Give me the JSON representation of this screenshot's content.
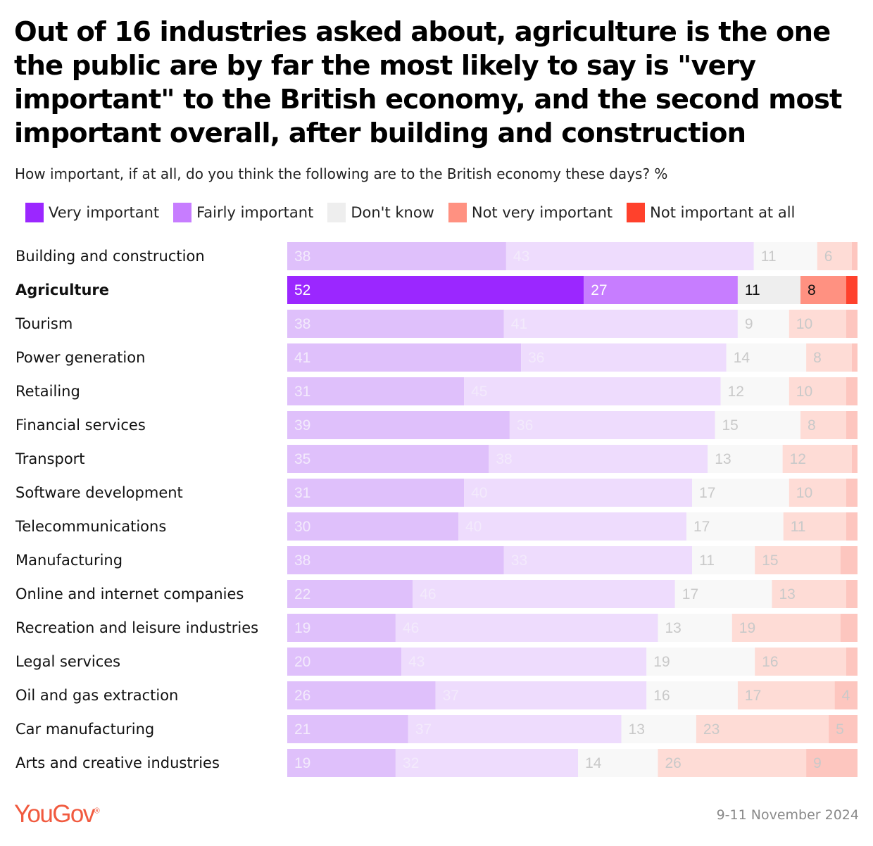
{
  "header": {
    "title": "Out of 16 industries asked about, agriculture is the one the public are by far the most likely to say is \"very important\" to the British economy, and the second most important overall, after building and construction",
    "subtitle": "How important, if at all, do you think the following are to the British economy these days? %"
  },
  "legend": [
    {
      "label": "Very important",
      "color": "#9b27ff"
    },
    {
      "label": "Fairly important",
      "color": "#c77dff"
    },
    {
      "label": "Don't know",
      "color": "#eeeeee"
    },
    {
      "label": "Not very important",
      "color": "#ff9181"
    },
    {
      "label": "Not important at all",
      "color": "#ff412c"
    }
  ],
  "chart_data": {
    "type": "bar",
    "orientation": "horizontal",
    "stacked": true,
    "highlight": "Agriculture",
    "categories": [
      "Building and construction",
      "Agriculture",
      "Tourism",
      "Power generation",
      "Retailing",
      "Financial services",
      "Transport",
      "Software development",
      "Telecommunications",
      "Manufacturing",
      "Online and internet companies",
      "Recreation and leisure industries",
      "Legal services",
      "Oil and gas extraction",
      "Car manufacturing",
      "Arts and creative industries"
    ],
    "series": [
      {
        "name": "Very important",
        "color": "#9b27ff",
        "faded_color": "#dfc0fb",
        "values": [
          38,
          52,
          38,
          41,
          31,
          39,
          35,
          31,
          30,
          38,
          22,
          19,
          20,
          26,
          21,
          19
        ]
      },
      {
        "name": "Fairly important",
        "color": "#c77dff",
        "faded_color": "#eedcfd",
        "values": [
          43,
          27,
          41,
          36,
          45,
          36,
          38,
          40,
          40,
          33,
          46,
          46,
          43,
          37,
          37,
          32
        ]
      },
      {
        "name": "Don't know",
        "color": "#eeeeee",
        "faded_color": "#f8f8f8",
        "values": [
          11,
          11,
          9,
          14,
          12,
          15,
          13,
          17,
          17,
          11,
          17,
          13,
          19,
          16,
          13,
          14
        ]
      },
      {
        "name": "Not very important",
        "color": "#ff9181",
        "faded_color": "#fedcd6",
        "values": [
          6,
          8,
          10,
          8,
          10,
          8,
          12,
          10,
          11,
          15,
          13,
          19,
          16,
          17,
          23,
          26
        ]
      },
      {
        "name": "Not important at all",
        "color": "#ff412c",
        "faded_color": "#fdc6bf",
        "values": [
          1,
          2,
          2,
          1,
          2,
          2,
          1,
          2,
          2,
          3,
          2,
          3,
          2,
          4,
          5,
          9
        ]
      }
    ],
    "label_min_value": 4,
    "xlim": [
      0,
      100
    ]
  },
  "footer": {
    "brand": "YouGov",
    "date": "9-11 November 2024"
  }
}
